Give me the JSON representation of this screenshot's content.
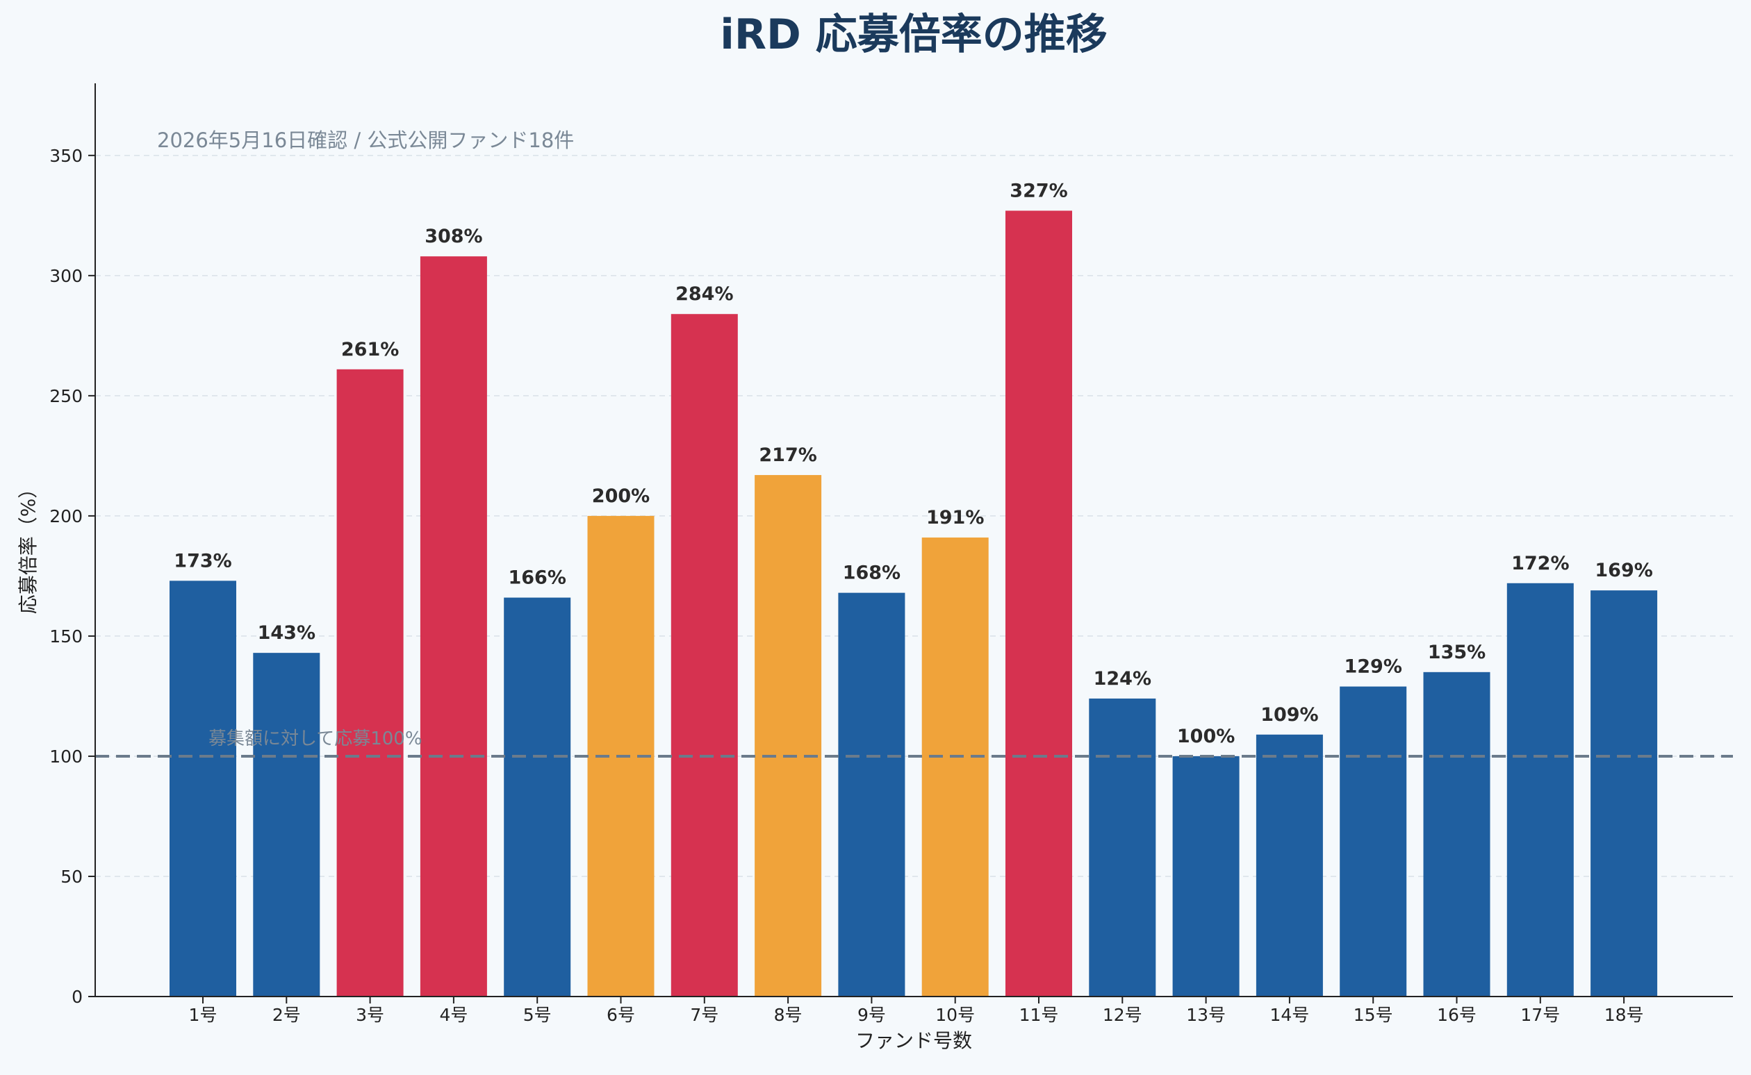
{
  "chart_data": {
    "type": "bar",
    "title": "iRD 応募倍率の推移",
    "subtitle": "2026年5月16日確認 / 公式公開ファンド18件",
    "xlabel": "ファンド号数",
    "ylabel": "応募倍率（%）",
    "ylim": [
      0,
      380
    ],
    "yticks": [
      0,
      50,
      100,
      150,
      200,
      250,
      300,
      350
    ],
    "grid": "horizontal-dashed",
    "categories": [
      "1号",
      "2号",
      "3号",
      "4号",
      "5号",
      "6号",
      "7号",
      "8号",
      "9号",
      "10号",
      "11号",
      "12号",
      "13号",
      "14号",
      "15号",
      "16号",
      "17号",
      "18号"
    ],
    "values": [
      173,
      143,
      261,
      308,
      166,
      200,
      284,
      217,
      168,
      191,
      327,
      124,
      100,
      109,
      129,
      135,
      172,
      169
    ],
    "value_labels": [
      "173%",
      "143%",
      "261%",
      "308%",
      "166%",
      "200%",
      "284%",
      "217%",
      "168%",
      "191%",
      "327%",
      "124%",
      "100%",
      "109%",
      "129%",
      "135%",
      "172%",
      "169%"
    ],
    "bar_colors": [
      "#1f5fa0",
      "#1f5fa0",
      "#d63250",
      "#d63250",
      "#1f5fa0",
      "#f0a33a",
      "#d63250",
      "#f0a33a",
      "#1f5fa0",
      "#f0a33a",
      "#d63250",
      "#1f5fa0",
      "#1f5fa0",
      "#1f5fa0",
      "#1f5fa0",
      "#1f5fa0",
      "#1f5fa0",
      "#1f5fa0"
    ],
    "reference_line": {
      "value": 100,
      "label": "募集額に対して応募100%",
      "color": "#6b7b8b"
    }
  }
}
